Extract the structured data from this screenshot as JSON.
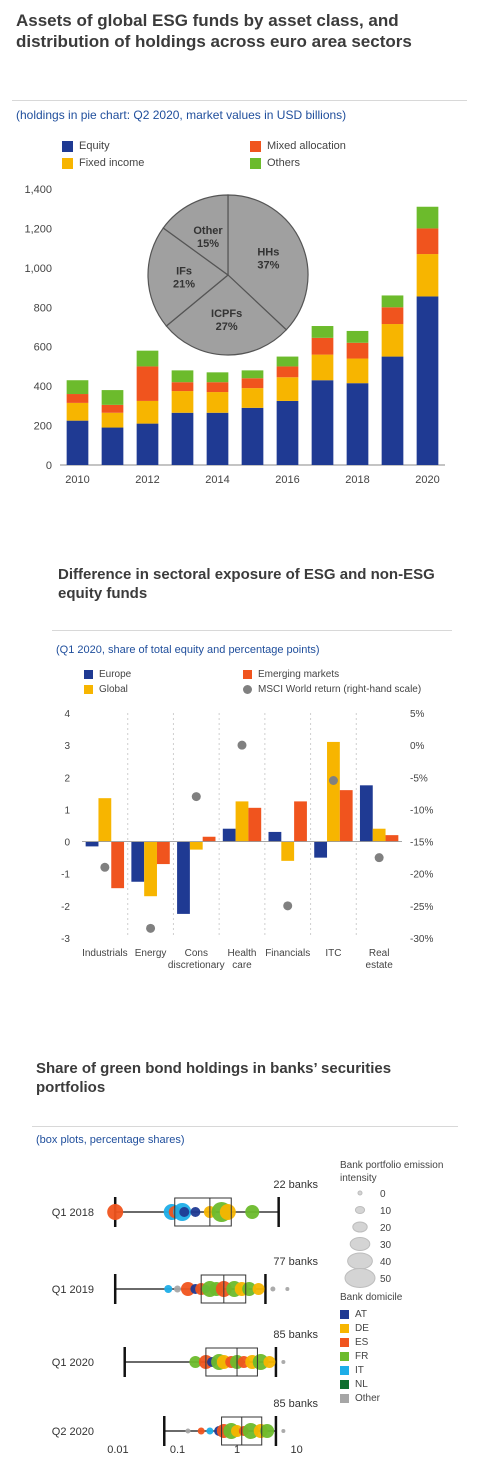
{
  "colors": {
    "equity": "#1f3a93",
    "fixed_income": "#f7b500",
    "mixed": "#f0541e",
    "others": "#6cbb2c",
    "pie": "#a0a0a0",
    "europe": "#1f3a93",
    "global": "#f7b500",
    "emerging": "#f0541e",
    "msci": "#808080",
    "AT": "#1f3a93",
    "DE": "#f7b500",
    "ES": "#f0541e",
    "FR": "#6cbb2c",
    "IT": "#1eaee8",
    "NL": "#0d6e2d",
    "Other": "#a6a6a6"
  },
  "panel1": {
    "title": "Assets of global ESG funds by asset class, and distribution of holdings across euro area sectors",
    "subtitle": "(holdings in pie chart: Q2 2020, market values in USD billions)",
    "legend": [
      "Equity",
      "Mixed allocation",
      "Fixed income",
      "Others"
    ]
  },
  "panel2": {
    "title": "Difference in sectoral exposure of ESG and non-ESG equity funds",
    "subtitle": "(Q1 2020, share of total equity and percentage points)",
    "legend": [
      "Europe",
      "Emerging markets",
      "Global",
      "MSCI World return (right-hand scale)"
    ]
  },
  "panel3": {
    "title": "Share of green bond holdings in banks’ securities portfolios",
    "subtitle": "(box plots, percentage shares)",
    "size_legend_title": "Bank portfolio emission intensity",
    "size_legend": [
      "0",
      "10",
      "20",
      "30",
      "40",
      "50"
    ],
    "domicile_title": "Bank domicile",
    "domicile": [
      "AT",
      "DE",
      "ES",
      "FR",
      "IT",
      "NL",
      "Other"
    ]
  },
  "chart_data": [
    {
      "type": "bar",
      "stacked": true,
      "categories": [
        "2010",
        "2011",
        "2012",
        "2013",
        "2014",
        "2015",
        "2016",
        "2017",
        "2018",
        "2019",
        "2020"
      ],
      "x_tick_labels": [
        "2010",
        "2012",
        "2014",
        "2016",
        "2018",
        "2020"
      ],
      "series": [
        {
          "name": "Equity",
          "values": [
            225,
            190,
            210,
            265,
            265,
            290,
            325,
            430,
            415,
            550,
            855
          ]
        },
        {
          "name": "Fixed income",
          "values": [
            90,
            75,
            115,
            110,
            105,
            100,
            120,
            130,
            125,
            165,
            215
          ]
        },
        {
          "name": "Mixed allocation",
          "values": [
            45,
            40,
            175,
            45,
            50,
            50,
            55,
            85,
            80,
            85,
            130
          ]
        },
        {
          "name": "Others",
          "values": [
            70,
            75,
            80,
            60,
            50,
            40,
            50,
            60,
            60,
            60,
            110
          ]
        }
      ],
      "ylim": [
        0,
        1400
      ],
      "y_ticks": [
        0,
        200,
        400,
        600,
        800,
        1000,
        1200,
        1400
      ],
      "y_tick_labels": [
        "0",
        "200",
        "400",
        "600",
        "800",
        "1,000",
        "1,200",
        "1,400"
      ],
      "inset_pie": {
        "type": "pie",
        "slices": [
          {
            "label": "HHs",
            "value": 37,
            "text": "37%"
          },
          {
            "label": "ICPFs",
            "value": 27,
            "text": "27%"
          },
          {
            "label": "IFs",
            "value": 21,
            "text": "21%"
          },
          {
            "label": "Other",
            "value": 15,
            "text": "15%"
          }
        ]
      }
    },
    {
      "type": "bar",
      "categories": [
        "Industrials",
        "Energy",
        "Cons discretionary",
        "Health care",
        "Financials",
        "ITC",
        "Real estate"
      ],
      "category_labels": [
        [
          "Industrials"
        ],
        [
          "Energy"
        ],
        [
          "Cons",
          "discretionary"
        ],
        [
          "Health",
          "care"
        ],
        [
          "Financials"
        ],
        [
          "ITC"
        ],
        [
          "Real",
          "estate"
        ]
      ],
      "series": [
        {
          "name": "Europe",
          "values": [
            -0.15,
            -1.25,
            -2.25,
            0.4,
            0.3,
            -0.5,
            1.75
          ]
        },
        {
          "name": "Global",
          "values": [
            1.35,
            -1.7,
            -0.25,
            1.25,
            -0.6,
            3.1,
            0.4
          ]
        },
        {
          "name": "Emerging markets",
          "values": [
            -1.45,
            -0.7,
            0.15,
            1.05,
            1.25,
            1.6,
            0.2
          ]
        }
      ],
      "scatter_series": {
        "name": "MSCI World return (right-hand scale)",
        "values": [
          -19.0,
          -28.5,
          -8.0,
          0.0,
          -25.0,
          -5.5,
          -17.5
        ]
      },
      "ylim": [
        -3,
        4
      ],
      "y_ticks": [
        -3,
        -2,
        -1,
        0,
        1,
        2,
        3,
        4
      ],
      "y2lim": [
        -30,
        5
      ],
      "y2_ticks": [
        -30,
        -25,
        -20,
        -15,
        -10,
        -5,
        0,
        5
      ],
      "y2_tick_labels": [
        "-30%",
        "-25%",
        "-20%",
        "-15%",
        "-10%",
        "-5%",
        "0%",
        "5%"
      ]
    },
    {
      "type": "boxplot",
      "xscale": "log",
      "xlim": [
        0.005,
        30
      ],
      "x_ticks": [
        0.01,
        0.1,
        1,
        10
      ],
      "x_tick_labels": [
        "0.01",
        "0.1",
        "1",
        "10"
      ],
      "rows": [
        {
          "label": "Q1 2018",
          "count_label": "22 banks",
          "whisker": [
            0.009,
            5
          ],
          "box": [
            0.09,
            0.8
          ],
          "median": 0.35,
          "points": [
            [
              0.009,
              "ES",
              14
            ],
            [
              0.08,
              "IT",
              14
            ],
            [
              0.09,
              "ES",
              10
            ],
            [
              0.12,
              "IT",
              16
            ],
            [
              0.13,
              "AT",
              8
            ],
            [
              0.2,
              "AT",
              8
            ],
            [
              0.35,
              "DE",
              10
            ],
            [
              0.55,
              "FR",
              18
            ],
            [
              0.7,
              "DE",
              14
            ],
            [
              1.8,
              "FR",
              12
            ]
          ]
        },
        {
          "label": "Q1 2019",
          "count_label": "77 banks",
          "whisker": [
            0.009,
            3
          ],
          "box": [
            0.25,
            1.4
          ],
          "median": 0.6,
          "points": [
            [
              0.07,
              "IT",
              6
            ],
            [
              0.1,
              "Other",
              5
            ],
            [
              0.15,
              "ES",
              12
            ],
            [
              0.2,
              "AT",
              8
            ],
            [
              0.25,
              "ES",
              10
            ],
            [
              0.3,
              "IT",
              6
            ],
            [
              0.35,
              "FR",
              14
            ],
            [
              0.45,
              "FR",
              12
            ],
            [
              0.6,
              "ES",
              14
            ],
            [
              0.9,
              "FR",
              14
            ],
            [
              1.2,
              "DE",
              12
            ],
            [
              1.6,
              "FR",
              12
            ],
            [
              2.3,
              "DE",
              10
            ],
            [
              4,
              "Other",
              3
            ],
            [
              7,
              "Other",
              2
            ]
          ]
        },
        {
          "label": "Q1 2020",
          "count_label": "85 banks",
          "whisker": [
            0.013,
            4.5
          ],
          "box": [
            0.3,
            2.2
          ],
          "median": 1.0,
          "points": [
            [
              0.2,
              "FR",
              10
            ],
            [
              0.3,
              "ES",
              12
            ],
            [
              0.38,
              "AT",
              8
            ],
            [
              0.5,
              "FR",
              14
            ],
            [
              0.6,
              "DE",
              12
            ],
            [
              0.8,
              "ES",
              10
            ],
            [
              1.0,
              "FR",
              12
            ],
            [
              1.3,
              "ES",
              10
            ],
            [
              1.8,
              "DE",
              12
            ],
            [
              2.5,
              "FR",
              14
            ],
            [
              3.5,
              "DE",
              10
            ],
            [
              6,
              "Other",
              2
            ]
          ]
        },
        {
          "label": "Q2 2020",
          "count_label": "85 banks",
          "whisker": [
            0.06,
            4.5
          ],
          "box": [
            0.55,
            2.6
          ],
          "median": 1.2,
          "points": [
            [
              0.15,
              "Other",
              3
            ],
            [
              0.25,
              "ES",
              5
            ],
            [
              0.35,
              "IT",
              5
            ],
            [
              0.5,
              "AT",
              8
            ],
            [
              0.6,
              "ES",
              12
            ],
            [
              0.8,
              "FR",
              14
            ],
            [
              1.0,
              "DE",
              10
            ],
            [
              1.3,
              "ES",
              8
            ],
            [
              1.7,
              "FR",
              14
            ],
            [
              2.5,
              "DE",
              12
            ],
            [
              3.2,
              "FR",
              12
            ],
            [
              6,
              "Other",
              2
            ]
          ]
        }
      ]
    }
  ]
}
